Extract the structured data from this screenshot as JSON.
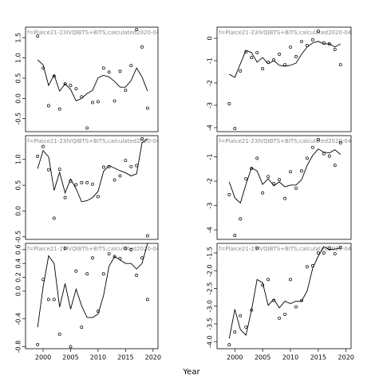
{
  "xlabel": "Year",
  "chart_data": [
    {
      "type": "scatter",
      "title": "f=Plaice21-23IVQIBTS+BITS;calculated2020-04-",
      "x": [
        1999,
        2000,
        2001,
        2002,
        2003,
        2004,
        2005,
        2006,
        2007,
        2008,
        2009,
        2010,
        2011,
        2012,
        2013,
        2014,
        2015,
        2016,
        2017,
        2018,
        2019
      ],
      "xlim": [
        1996.8,
        2020.9
      ],
      "ylim": [
        -0.82,
        1.76
      ],
      "yticks": [
        1.5,
        {
          "value": 1,
          "label": "1.0"
        },
        0.5,
        {
          "value": 0,
          "label": "0.0"
        },
        -0.5
      ],
      "series": [
        {
          "style": "points",
          "color": "#000000",
          "values": [
            1.54,
            0.75,
            -0.18,
            0.55,
            -0.26,
            0.36,
            0.32,
            0.24,
            0.04,
            -0.73,
            -0.1,
            -0.08,
            0.75,
            0.65,
            -0.06,
            0.67,
            0.2,
            0.81,
            1.7,
            1.27,
            -0.24
          ]
        },
        {
          "style": "line",
          "color": "#000000",
          "values": [
            0.95,
            0.83,
            0.32,
            0.58,
            0.18,
            0.36,
            0.22,
            -0.06,
            0,
            0.12,
            0.2,
            0.51,
            0.57,
            0.53,
            0.42,
            0.28,
            0.28,
            0.44,
            0.75,
            0.53,
            0.18
          ]
        }
      ]
    },
    {
      "type": "scatter",
      "title": "f=Plaice21-23IVQIBTS+BITS;calculated2020-04-",
      "x": [
        1999,
        2000,
        2001,
        2002,
        2003,
        2004,
        2005,
        2006,
        2007,
        2008,
        2009,
        2010,
        2011,
        2012,
        2013,
        2014,
        2015,
        2016,
        2017,
        2018,
        2019
      ],
      "xlim": [
        1996.8,
        2020.9
      ],
      "ylim": [
        -0.55,
        1.46
      ],
      "yticks": [
        {
          "value": 1,
          "label": "1.0"
        },
        0.5,
        {
          "value": 0,
          "label": "0.0"
        },
        -0.5
      ],
      "series": [
        {
          "style": "points",
          "color": "#000000",
          "values": [
            1.06,
            1.25,
            0.8,
            -0.14,
            0.81,
            0.26,
            0.58,
            0.51,
            0.55,
            0.55,
            0.52,
            0.28,
            0.85,
            0.86,
            0.6,
            0.68,
            0.98,
            0.86,
            0.88,
            1.4,
            -0.48
          ]
        },
        {
          "style": "line",
          "color": "#000000",
          "values": [
            0.82,
            1.17,
            1.05,
            0.4,
            0.75,
            0.35,
            0.62,
            0.43,
            0.18,
            0.2,
            0.26,
            0.38,
            0.77,
            0.88,
            0.83,
            0.78,
            0.74,
            0.68,
            0.72,
            1.32,
            1.4
          ]
        }
      ]
    },
    {
      "type": "scatter",
      "title": "f=Plaice21-23IVQIBTS+BITS;calculated2020-04-",
      "x": [
        1999,
        2000,
        2001,
        2002,
        2003,
        2004,
        2005,
        2006,
        2007,
        2008,
        2009,
        2010,
        2011,
        2012,
        2013,
        2014,
        2015,
        2016,
        2017,
        2018,
        2019
      ],
      "xlim": [
        1996.8,
        2020.9
      ],
      "ylim": [
        -0.83,
        0.69
      ],
      "xticks": [
        2000,
        2005,
        2010,
        2015,
        2020
      ],
      "yticks": [
        0.6,
        0.4,
        0.2,
        {
          "value": 0,
          "label": "0.0"
        },
        -0.4,
        -0.8
      ],
      "series": [
        {
          "style": "points",
          "color": "#000000",
          "values": [
            -0.77,
            0.17,
            -0.12,
            -0.12,
            -0.62,
            0.62,
            -0.8,
            0.29,
            -0.52,
            0.25,
            0.48,
            -0.29,
            0.25,
            0.54,
            0.5,
            0.47,
            0.62,
            0.6,
            0.23,
            0.48,
            -0.12
          ]
        },
        {
          "style": "line",
          "color": "#000000",
          "values": [
            -0.52,
            0.06,
            0.51,
            0.4,
            -0.23,
            0.11,
            -0.26,
            0.03,
            -0.21,
            -0.38,
            -0.38,
            -0.33,
            -0.06,
            0.36,
            0.5,
            0.45,
            0.4,
            0.4,
            0.32,
            0.4,
            0.69
          ]
        }
      ]
    },
    {
      "type": "scatter",
      "title": "f=Plaice21-23IVQIBTS+BITS;calculated2020-04-",
      "x": [
        1999,
        2000,
        2001,
        2002,
        2003,
        2004,
        2005,
        2006,
        2007,
        2008,
        2009,
        2010,
        2011,
        2012,
        2013,
        2014,
        2015,
        2016,
        2017,
        2018,
        2019
      ],
      "xlim": [
        1996.8,
        2020.9
      ],
      "ylim": [
        -4.18,
        0.5
      ],
      "yticks": [
        0,
        -1,
        -2,
        -3,
        -4
      ],
      "series": [
        {
          "style": "points",
          "color": "#000000",
          "values": [
            -2.93,
            -4.04,
            -1.46,
            -0.61,
            -0.86,
            -0.64,
            -1.36,
            -1.07,
            -0.96,
            -0.71,
            -1.18,
            -0.39,
            -0.82,
            -0.14,
            -0.32,
            -0.07,
            0.32,
            -0.21,
            -0.25,
            -0.5,
            -1.18
          ]
        },
        {
          "style": "line",
          "color": "#000000",
          "values": [
            -1.61,
            -1.75,
            -1.14,
            -0.54,
            -0.64,
            -1.07,
            -0.86,
            -1.14,
            -1.0,
            -1.21,
            -1.25,
            -1.21,
            -1.11,
            -0.71,
            -0.39,
            -0.21,
            -0.14,
            -0.25,
            -0.25,
            -0.39,
            -0.25
          ]
        }
      ]
    },
    {
      "type": "scatter",
      "title": "f=Plaice21-23IVQIBTS+BITS;calculated2020-04-",
      "x": [
        1999,
        2000,
        2001,
        2002,
        2003,
        2004,
        2005,
        2006,
        2007,
        2008,
        2009,
        2010,
        2011,
        2012,
        2013,
        2014,
        2015,
        2016,
        2017,
        2018,
        2019
      ],
      "xlim": [
        1996.8,
        2020.9
      ],
      "ylim": [
        -4.39,
        -0.13
      ],
      "yticks": [
        -1,
        -2,
        -3,
        -4
      ],
      "series": [
        {
          "style": "points",
          "color": "#000000",
          "values": [
            -2.55,
            -4.23,
            -3.55,
            -1.9,
            -1.48,
            -1.06,
            -2.48,
            -1.81,
            -2.1,
            -1.94,
            -2.71,
            -1.61,
            -2.29,
            -1.58,
            -1.06,
            -0.61,
            -0.29,
            -0.87,
            -0.97,
            -1.35,
            -0.42
          ]
        },
        {
          "style": "line",
          "color": "#000000",
          "values": [
            -2.03,
            -2.68,
            -2.9,
            -2.13,
            -1.45,
            -1.58,
            -2.13,
            -1.9,
            -2.19,
            -2.03,
            -2.23,
            -2.16,
            -2.16,
            -1.94,
            -1.35,
            -0.94,
            -0.68,
            -0.81,
            -0.84,
            -0.71,
            -0.9
          ]
        }
      ]
    },
    {
      "type": "scatter",
      "title": "f=Plaice21-23IVQIBTS+BITS;calculated2020-04-",
      "x": [
        1999,
        2000,
        2001,
        2002,
        2003,
        2004,
        2005,
        2006,
        2007,
        2008,
        2009,
        2010,
        2011,
        2012,
        2013,
        2014,
        2015,
        2016,
        2017,
        2018,
        2019
      ],
      "xlim": [
        1996.8,
        2020.9
      ],
      "ylim": [
        -4.2,
        -1.23
      ],
      "xticks": [
        2000,
        2005,
        2010,
        2015,
        2020
      ],
      "yticks": [
        -1.5,
        {
          "value": -2,
          "label": "-2.0"
        },
        -2.5,
        {
          "value": -3,
          "label": "-3.0"
        },
        -3.5,
        {
          "value": -4,
          "label": "-4.0"
        }
      ],
      "series": [
        {
          "style": "points",
          "color": "#000000",
          "values": [
            -4.09,
            -3.73,
            -3.27,
            -3.59,
            -3.11,
            -1.36,
            -2.41,
            -2.25,
            -2.84,
            -3.34,
            -3.23,
            -2.25,
            -3.02,
            -2.84,
            -1.89,
            -1.86,
            -1.5,
            -1.5,
            -1.36,
            -1.52,
            -1.34
          ]
        },
        {
          "style": "line",
          "color": "#000000",
          "values": [
            -3.91,
            -3.09,
            -3.66,
            -3.82,
            -3.11,
            -2.25,
            -2.34,
            -2.98,
            -2.8,
            -3.05,
            -2.86,
            -2.93,
            -2.86,
            -2.86,
            -2.57,
            -1.93,
            -1.59,
            -1.32,
            -1.41,
            -1.39,
            -1.36
          ]
        }
      ]
    }
  ]
}
